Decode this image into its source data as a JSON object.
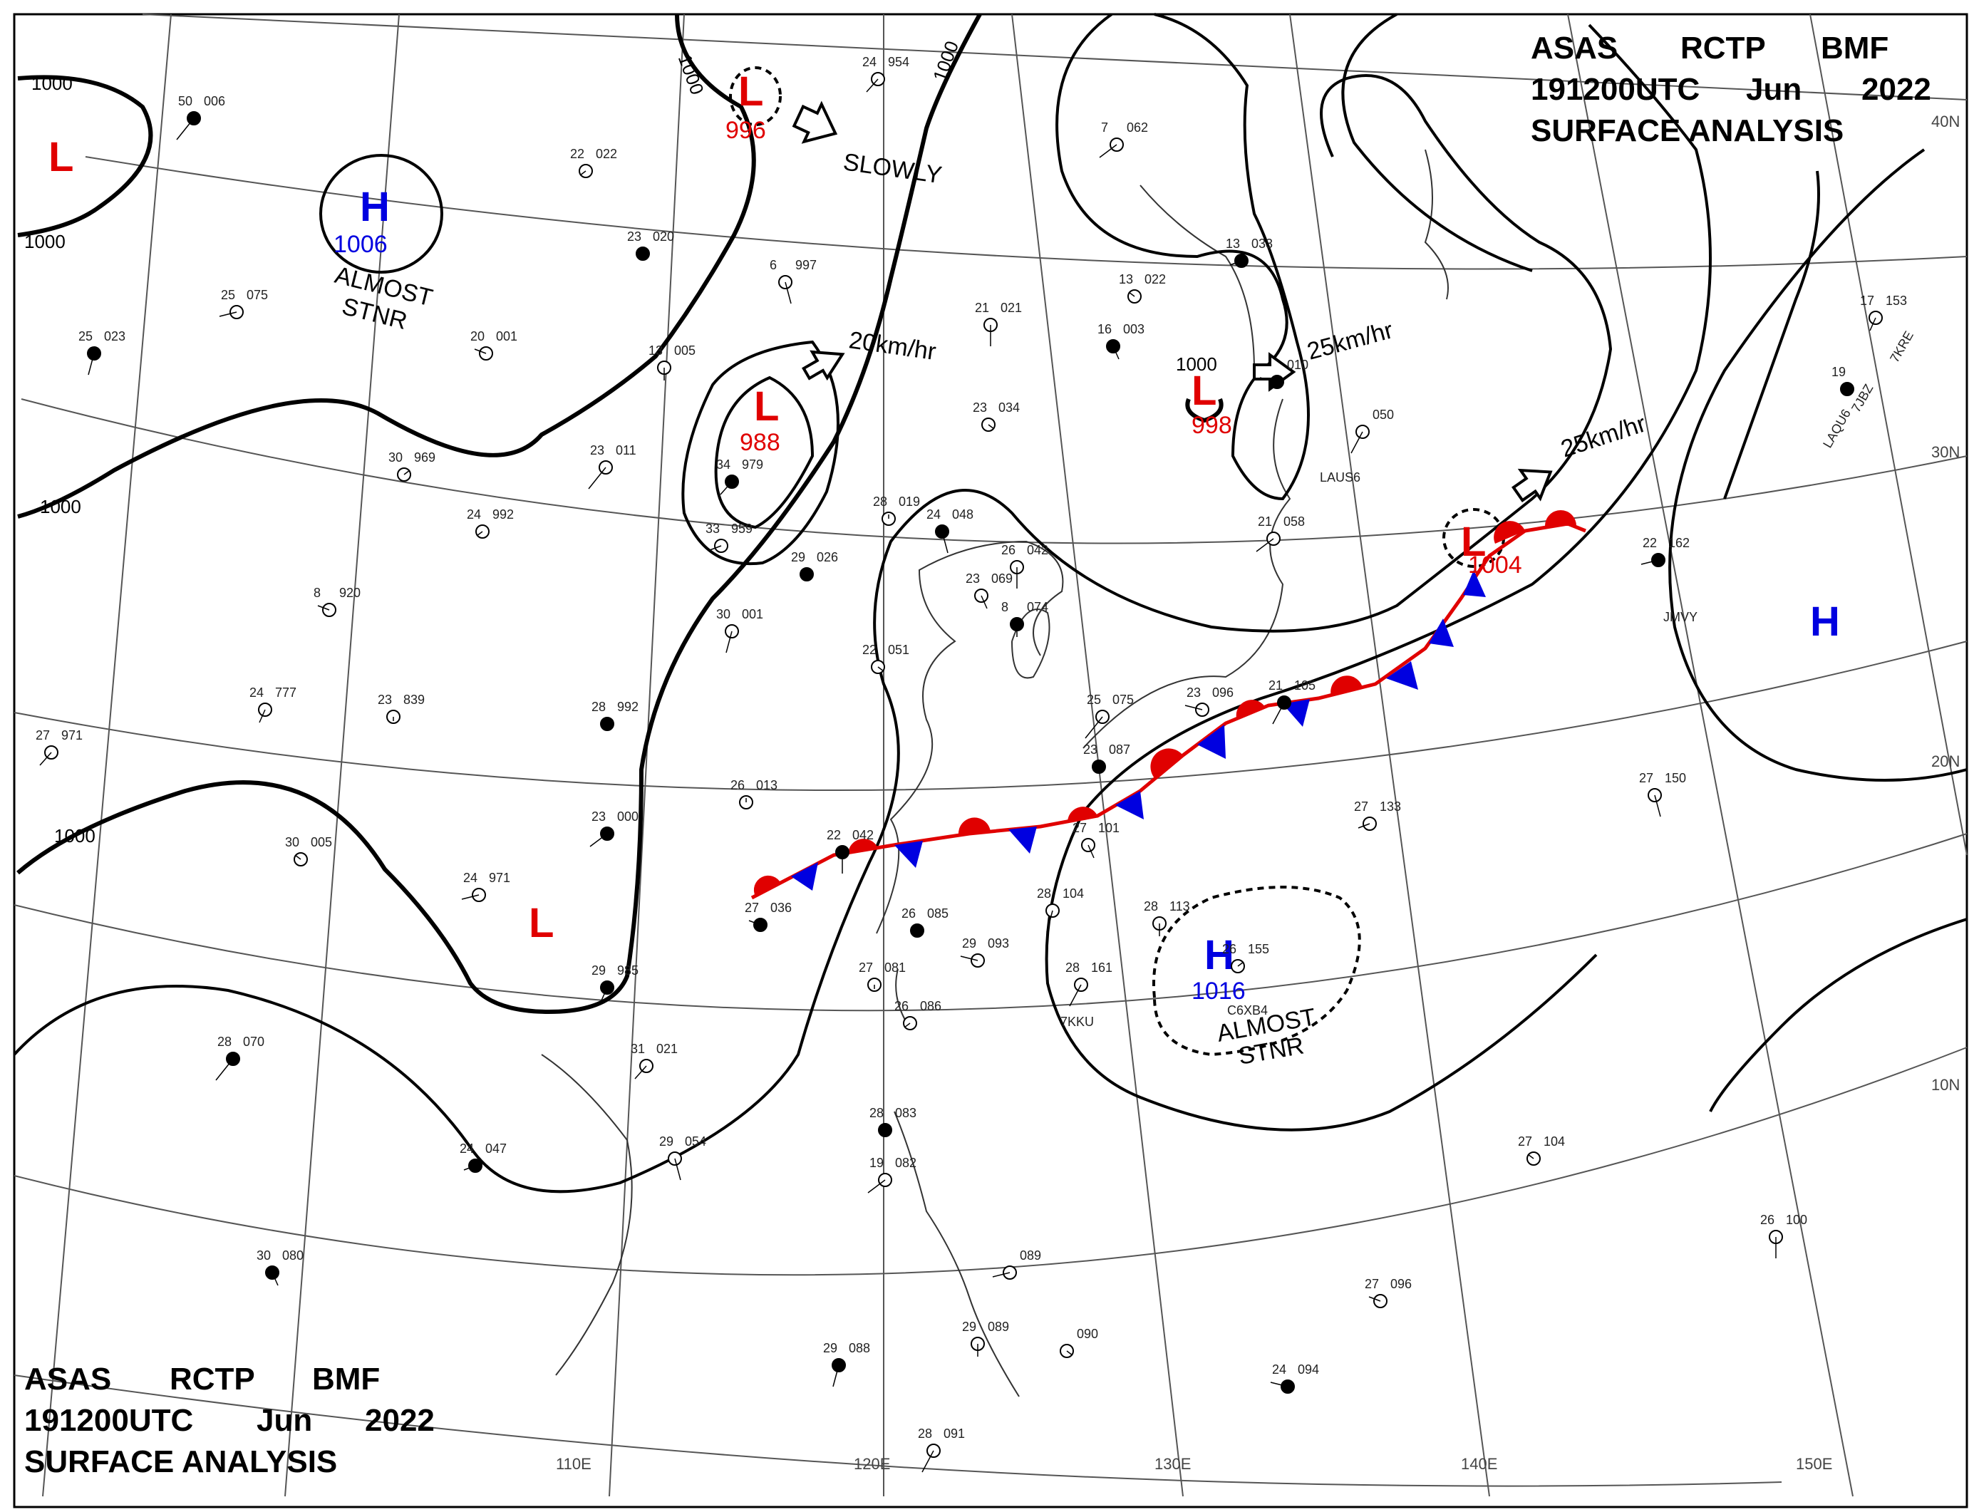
{
  "header_top": {
    "line1": [
      "ASAS",
      "RCTP",
      "BMF"
    ],
    "line2": [
      "191200UTC",
      "Jun",
      "2022"
    ],
    "line3": "SURFACE ANALYSIS"
  },
  "header_bottom": {
    "line1": [
      "ASAS",
      "RCTP",
      "BMF"
    ],
    "line2": [
      "191200UTC",
      "Jun",
      "2022"
    ],
    "line3": "SURFACE ANALYSIS"
  },
  "longitude_labels": [
    "110E",
    "120E",
    "130E",
    "140E",
    "150E"
  ],
  "latitude_labels": [
    "40N",
    "30N",
    "20N",
    "10N"
  ],
  "isobar_labels": [
    "1000",
    "1000",
    "1000",
    "1000",
    "1000",
    "1000",
    "1000",
    "1000"
  ],
  "pressure_centers": [
    {
      "type": "L",
      "value": "",
      "color": "#e00000"
    },
    {
      "type": "H",
      "value": "1006",
      "color": "#0000e0"
    },
    {
      "type": "L",
      "value": "996",
      "color": "#e00000"
    },
    {
      "type": "L",
      "value": "988",
      "color": "#e00000"
    },
    {
      "type": "L",
      "value": "998",
      "color": "#e00000"
    },
    {
      "type": "L",
      "value": "1004",
      "color": "#e00000"
    },
    {
      "type": "H",
      "value": "",
      "color": "#0000e0"
    },
    {
      "type": "L",
      "value": "",
      "color": "#e00000"
    },
    {
      "type": "H",
      "value": "1016",
      "color": "#0000e0"
    }
  ],
  "motion_notes": [
    "SLOWLY",
    "20km/hr",
    "25km/hr",
    "25km/hr"
  ],
  "stationary_notes": [
    {
      "line1": "ALMOST",
      "line2": "STNR"
    },
    {
      "line1": "ALMOST",
      "line2": "STNR"
    }
  ],
  "stations": [
    {
      "t": "50",
      "p": "006"
    },
    {
      "t": "24",
      "p": "954"
    },
    {
      "t": "22",
      "p": "022"
    },
    {
      "t": "23",
      "p": "020"
    },
    {
      "t": "6",
      "p": "997"
    },
    {
      "t": "7",
      "p": "062"
    },
    {
      "t": "13",
      "p": "033"
    },
    {
      "t": "13",
      "p": "022"
    },
    {
      "t": "21",
      "p": "021"
    },
    {
      "t": "16",
      "p": "003"
    },
    {
      "t": "25",
      "p": "075"
    },
    {
      "t": "20",
      "p": "001"
    },
    {
      "t": "25",
      "p": "023"
    },
    {
      "t": "13",
      "p": "005"
    },
    {
      "t": "23",
      "p": "034"
    },
    {
      "t": "",
      "p": "010"
    },
    {
      "t": "",
      "p": "050"
    },
    {
      "t": "17",
      "p": "153"
    },
    {
      "t": "19",
      "p": ""
    },
    {
      "t": "30",
      "p": "969"
    },
    {
      "t": "23",
      "p": "011"
    },
    {
      "t": "34",
      "p": "979"
    },
    {
      "t": "24",
      "p": "992"
    },
    {
      "t": "28",
      "p": "019"
    },
    {
      "t": "24",
      "p": "048"
    },
    {
      "t": "21",
      "p": "058"
    },
    {
      "t": "33",
      "p": "959"
    },
    {
      "t": "29",
      "p": "026"
    },
    {
      "t": "26",
      "p": "042"
    },
    {
      "t": "23",
      "p": "069"
    },
    {
      "t": "22",
      "p": "162"
    },
    {
      "t": "8",
      "p": "920"
    },
    {
      "t": "30",
      "p": "001"
    },
    {
      "t": "8",
      "p": "074"
    },
    {
      "t": "22",
      "p": "051"
    },
    {
      "t": "23",
      "p": "096"
    },
    {
      "t": "21",
      "p": "105"
    },
    {
      "t": "24",
      "p": "777"
    },
    {
      "t": "23",
      "p": "839"
    },
    {
      "t": "28",
      "p": "992"
    },
    {
      "t": "25",
      "p": "075"
    },
    {
      "t": "27",
      "p": "971"
    },
    {
      "t": "23",
      "p": "087"
    },
    {
      "t": "26",
      "p": "013"
    },
    {
      "t": "27",
      "p": "150"
    },
    {
      "t": "23",
      "p": "000"
    },
    {
      "t": "27",
      "p": "133"
    },
    {
      "t": "30",
      "p": "005"
    },
    {
      "t": "22",
      "p": "042"
    },
    {
      "t": "27",
      "p": "101"
    },
    {
      "t": "24",
      "p": "971"
    },
    {
      "t": "27",
      "p": "036"
    },
    {
      "t": "28",
      "p": "104"
    },
    {
      "t": "28",
      "p": "113"
    },
    {
      "t": "26",
      "p": "085"
    },
    {
      "t": "29",
      "p": "093"
    },
    {
      "t": "28",
      "p": "161"
    },
    {
      "t": "29",
      "p": "985"
    },
    {
      "t": "27",
      "p": "081"
    },
    {
      "t": "26",
      "p": "155"
    },
    {
      "t": "28",
      "p": "070"
    },
    {
      "t": "31",
      "p": "021"
    },
    {
      "t": "26",
      "p": "086"
    },
    {
      "t": "28",
      "p": "083"
    },
    {
      "t": "29",
      "p": "054"
    },
    {
      "t": "19",
      "p": "082"
    },
    {
      "t": "24",
      "p": "047"
    },
    {
      "t": "27",
      "p": "104"
    },
    {
      "t": "26",
      "p": "100"
    },
    {
      "t": "30",
      "p": "080"
    },
    {
      "t": "",
      "p": "089"
    },
    {
      "t": "27",
      "p": "096"
    },
    {
      "t": "29",
      "p": "088"
    },
    {
      "t": "29",
      "p": "089"
    },
    {
      "t": "",
      "p": "090"
    },
    {
      "t": "24",
      "p": "094"
    },
    {
      "t": "28",
      "p": "091"
    }
  ],
  "station_ids": [
    "7KKU",
    "C6XB4",
    "LAUS6",
    "LAQU6",
    "7JBZ",
    "JMVY",
    "7KRE"
  ]
}
